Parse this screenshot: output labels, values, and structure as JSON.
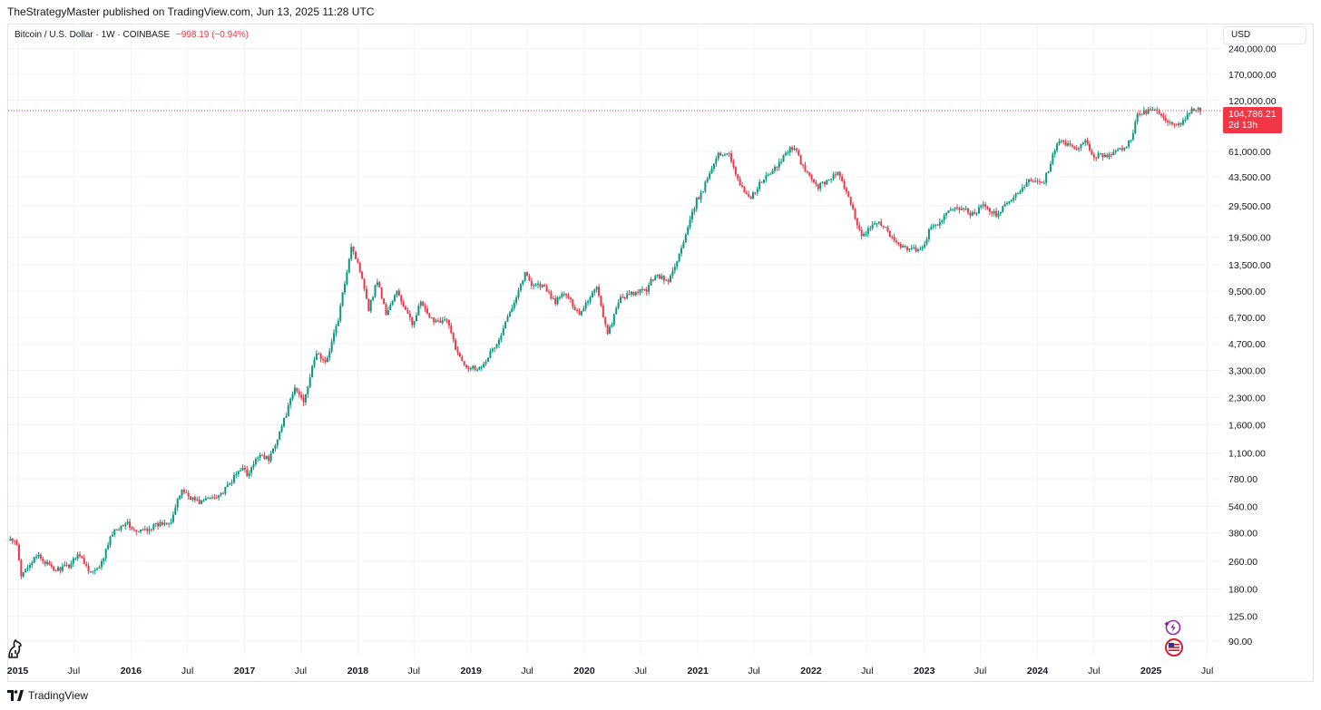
{
  "header": {
    "published": "TheStrategyMaster published on TradingView.com, Jun 13, 2025 11:28 UTC"
  },
  "legend": {
    "symbol": "Bitcoin / U.S. Dollar · 1W · COINBASE",
    "change": "−998.19 (−0.94%)"
  },
  "currency_button": "USD",
  "price_tag": {
    "price": "104,786.21",
    "countdown": "2d 13h"
  },
  "footer": {
    "brand": "TradingView"
  },
  "icons": {
    "left": "horse-icon",
    "assistant": "sparkle-lightning-icon",
    "flag": "us-flag-icon"
  },
  "colors": {
    "up": "#089981",
    "down": "#f23645",
    "grid": "#f0f3fa",
    "axis_text": "#131722"
  },
  "chart_data": {
    "type": "candlestick",
    "title": "Bitcoin / U.S. Dollar · 1W · COINBASE",
    "scale": "log",
    "grid": true,
    "last_price": 104786.21,
    "y_ticks": [
      "240,000.00",
      "170,000.00",
      "120,000.00",
      "61,000.00",
      "43,500.00",
      "29,500.00",
      "19,500.00",
      "13,500.00",
      "9,500.00",
      "6,700.00",
      "4,700.00",
      "3,300.00",
      "2,300.00",
      "1,600.00",
      "1,100.00",
      "780.00",
      "540.00",
      "380.00",
      "260.00",
      "180.00",
      "125.00",
      "90.00"
    ],
    "x_ticks": [
      "2015",
      "Jul",
      "2016",
      "Jul",
      "2017",
      "Jul",
      "2018",
      "Jul",
      "2019",
      "Jul",
      "2020",
      "Jul",
      "2021",
      "Jul",
      "2022",
      "Jul",
      "2023",
      "Jul",
      "2024",
      "Jul",
      "2025",
      "Jul"
    ],
    "x_tick_dates": [
      "2015-01-01",
      "2015-07-01",
      "2016-01-01",
      "2016-07-01",
      "2017-01-01",
      "2017-07-01",
      "2018-01-01",
      "2018-07-01",
      "2019-01-01",
      "2019-07-01",
      "2020-01-01",
      "2020-07-01",
      "2021-01-01",
      "2021-07-01",
      "2022-01-01",
      "2022-07-01",
      "2023-01-01",
      "2023-07-01",
      "2024-01-01",
      "2024-07-01",
      "2025-01-01",
      "2025-07-01"
    ],
    "x_range": [
      "2014-12-01",
      "2025-08-15"
    ],
    "y_range": [
      75,
      330000
    ],
    "start_week": "2014-12-08",
    "anchors": [
      [
        "2014-12-08",
        350
      ],
      [
        "2014-12-29",
        320
      ],
      [
        "2015-01-12",
        210
      ],
      [
        "2015-01-26",
        240
      ],
      [
        "2015-03-09",
        280
      ],
      [
        "2015-04-27",
        230
      ],
      [
        "2015-06-15",
        245
      ],
      [
        "2015-07-13",
        290
      ],
      [
        "2015-08-24",
        225
      ],
      [
        "2015-09-21",
        235
      ],
      [
        "2015-11-02",
        380
      ],
      [
        "2015-12-14",
        440
      ],
      [
        "2016-01-18",
        380
      ],
      [
        "2016-03-07",
        410
      ],
      [
        "2016-05-09",
        450
      ],
      [
        "2016-06-13",
        680
      ],
      [
        "2016-07-04",
        620
      ],
      [
        "2016-08-08",
        570
      ],
      [
        "2016-10-24",
        650
      ],
      [
        "2016-12-26",
        930
      ],
      [
        "2017-01-09",
        800
      ],
      [
        "2017-02-20",
        1100
      ],
      [
        "2017-03-20",
        1000
      ],
      [
        "2017-05-08",
        1700
      ],
      [
        "2017-06-12",
        2600
      ],
      [
        "2017-07-10",
        2200
      ],
      [
        "2017-08-21",
        4200
      ],
      [
        "2017-09-18",
        3600
      ],
      [
        "2017-10-30",
        6500
      ],
      [
        "2017-12-11",
        17500
      ],
      [
        "2018-01-15",
        11500
      ],
      [
        "2018-02-05",
        7500
      ],
      [
        "2018-03-05",
        11000
      ],
      [
        "2018-04-02",
        7000
      ],
      [
        "2018-05-07",
        9400
      ],
      [
        "2018-06-25",
        6100
      ],
      [
        "2018-07-23",
        8200
      ],
      [
        "2018-08-20",
        6500
      ],
      [
        "2018-10-15",
        6400
      ],
      [
        "2018-11-19",
        4100
      ],
      [
        "2018-12-17",
        3500
      ],
      [
        "2019-01-28",
        3400
      ],
      [
        "2019-04-01",
        4900
      ],
      [
        "2019-05-13",
        7800
      ],
      [
        "2019-06-24",
        12000
      ],
      [
        "2019-07-15",
        10500
      ],
      [
        "2019-08-19",
        10200
      ],
      [
        "2019-09-30",
        8200
      ],
      [
        "2019-10-28",
        9300
      ],
      [
        "2019-12-16",
        7000
      ],
      [
        "2020-02-10",
        10200
      ],
      [
        "2020-03-16",
        5300
      ],
      [
        "2020-04-27",
        8700
      ],
      [
        "2020-05-25",
        9000
      ],
      [
        "2020-07-20",
        9700
      ],
      [
        "2020-08-17",
        11900
      ],
      [
        "2020-09-28",
        10700
      ],
      [
        "2020-11-16",
        18000
      ],
      [
        "2020-12-28",
        32000
      ],
      [
        "2021-01-11",
        34000
      ],
      [
        "2021-02-15",
        50000
      ],
      [
        "2021-03-08",
        58000
      ],
      [
        "2021-04-12",
        60000
      ],
      [
        "2021-05-17",
        38000
      ],
      [
        "2021-06-21",
        33000
      ],
      [
        "2021-07-26",
        41000
      ],
      [
        "2021-09-06",
        48000
      ],
      [
        "2021-10-18",
        62000
      ],
      [
        "2021-11-08",
        65000
      ],
      [
        "2021-12-06",
        49000
      ],
      [
        "2022-01-24",
        38000
      ],
      [
        "2022-03-28",
        46000
      ],
      [
        "2022-05-09",
        30000
      ],
      [
        "2022-06-13",
        20000
      ],
      [
        "2022-07-18",
        22500
      ],
      [
        "2022-08-15",
        23500
      ],
      [
        "2022-09-19",
        19000
      ],
      [
        "2022-11-07",
        16500
      ],
      [
        "2022-12-26",
        16600
      ],
      [
        "2023-01-16",
        21000
      ],
      [
        "2023-02-20",
        24000
      ],
      [
        "2023-03-13",
        26000
      ],
      [
        "2023-04-10",
        29500
      ],
      [
        "2023-06-12",
        26000
      ],
      [
        "2023-07-10",
        30000
      ],
      [
        "2023-08-21",
        26000
      ],
      [
        "2023-10-23",
        34000
      ],
      [
        "2023-12-04",
        42000
      ],
      [
        "2024-01-22",
        41000
      ],
      [
        "2024-02-26",
        62000
      ],
      [
        "2024-03-11",
        70000
      ],
      [
        "2024-05-06",
        62000
      ],
      [
        "2024-06-03",
        69000
      ],
      [
        "2024-07-01",
        57000
      ],
      [
        "2024-08-05",
        58000
      ],
      [
        "2024-09-09",
        60000
      ],
      [
        "2024-10-28",
        70000
      ],
      [
        "2024-11-18",
        98000
      ],
      [
        "2024-12-16",
        104000
      ],
      [
        "2025-01-20",
        104000
      ],
      [
        "2025-02-24",
        88000
      ],
      [
        "2025-03-24",
        84000
      ],
      [
        "2025-04-21",
        94000
      ],
      [
        "2025-05-19",
        108000
      ],
      [
        "2025-06-09",
        104786
      ]
    ]
  }
}
